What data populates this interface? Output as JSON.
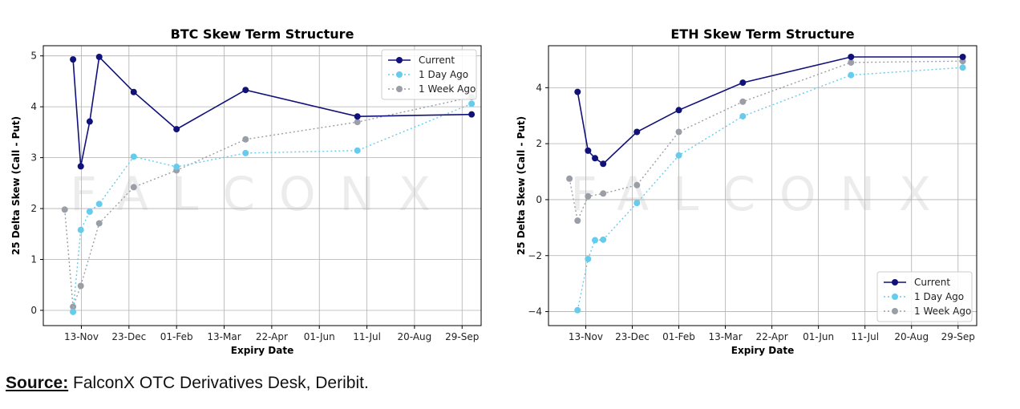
{
  "watermark": "FALCONX",
  "source": {
    "label": "Source:",
    "text": " FalconX OTC Derivatives Desk, Deribit."
  },
  "colors": {
    "current": "#11117a",
    "one_day": "#66ccee",
    "one_week": "#9a9ea6",
    "grid": "#b0b0b0",
    "watermark": "#ececec"
  },
  "chart_data": [
    {
      "type": "line",
      "title": "BTC Skew Term Structure",
      "xlabel": "Expiry Date",
      "ylabel": "25 Delta Skew (Call - Put)",
      "x_ticks": [
        "13-Nov",
        "23-Dec",
        "01-Feb",
        "13-Mar",
        "22-Apr",
        "01-Jun",
        "11-Jul",
        "20-Aug",
        "29-Sep"
      ],
      "x_tick_days": [
        0,
        40,
        80,
        120,
        160,
        200,
        240,
        280,
        320
      ],
      "xlim": [
        -32,
        336
      ],
      "y_ticks": [
        0,
        1,
        2,
        3,
        4,
        5
      ],
      "ylim": [
        -0.3,
        5.2
      ],
      "legend_position": "top-right",
      "series": [
        {
          "name": "Current",
          "style": "solid",
          "x": [
            -7,
            -0.5,
            7,
            15,
            44,
            80,
            138,
            232,
            328
          ],
          "y": [
            4.93,
            2.83,
            3.71,
            4.98,
            4.29,
            3.56,
            4.33,
            3.81,
            3.85
          ]
        },
        {
          "name": "1 Day Ago",
          "style": "dotted",
          "x": [
            -7,
            -0.5,
            7,
            15,
            44,
            80,
            138,
            232,
            328
          ],
          "y": [
            -0.03,
            1.58,
            1.94,
            2.09,
            3.02,
            2.82,
            3.09,
            3.14,
            4.06
          ]
        },
        {
          "name": "1 Week Ago",
          "style": "dotted",
          "x": [
            -14,
            -7,
            -0.5,
            15,
            44,
            80,
            138,
            232,
            328
          ],
          "y": [
            1.98,
            0.07,
            0.48,
            1.71,
            2.42,
            2.75,
            3.36,
            3.7,
            4.19
          ]
        }
      ]
    },
    {
      "type": "line",
      "title": "ETH Skew Term Structure",
      "xlabel": "Expiry Date",
      "ylabel": "25 Delta Skew (Call - Put)",
      "x_ticks": [
        "13-Nov",
        "23-Dec",
        "01-Feb",
        "13-Mar",
        "22-Apr",
        "01-Jun",
        "11-Jul",
        "20-Aug",
        "29-Sep"
      ],
      "x_tick_days": [
        0,
        40,
        80,
        120,
        160,
        200,
        240,
        280,
        320
      ],
      "xlim": [
        -32,
        336
      ],
      "y_ticks": [
        -4,
        -2,
        0,
        2,
        4
      ],
      "ylim": [
        -4.5,
        5.5
      ],
      "legend_position": "bottom-right",
      "series": [
        {
          "name": "Current",
          "style": "solid",
          "x": [
            -7,
            2,
            8,
            15,
            44,
            80,
            135,
            228,
            324
          ],
          "y": [
            3.85,
            1.75,
            1.48,
            1.28,
            2.42,
            3.2,
            4.18,
            5.1,
            5.1
          ]
        },
        {
          "name": "1 Day Ago",
          "style": "dotted",
          "x": [
            -7,
            2,
            8,
            15,
            44,
            80,
            135,
            228,
            324
          ],
          "y": [
            -3.95,
            -2.12,
            -1.45,
            -1.43,
            -0.12,
            1.58,
            2.98,
            4.45,
            4.72
          ]
        },
        {
          "name": "1 Week Ago",
          "style": "dotted",
          "x": [
            -14,
            -7,
            2,
            15,
            44,
            80,
            135,
            228,
            324
          ],
          "y": [
            0.75,
            -0.75,
            0.12,
            0.22,
            0.52,
            2.42,
            3.5,
            4.9,
            4.95
          ]
        }
      ]
    }
  ]
}
